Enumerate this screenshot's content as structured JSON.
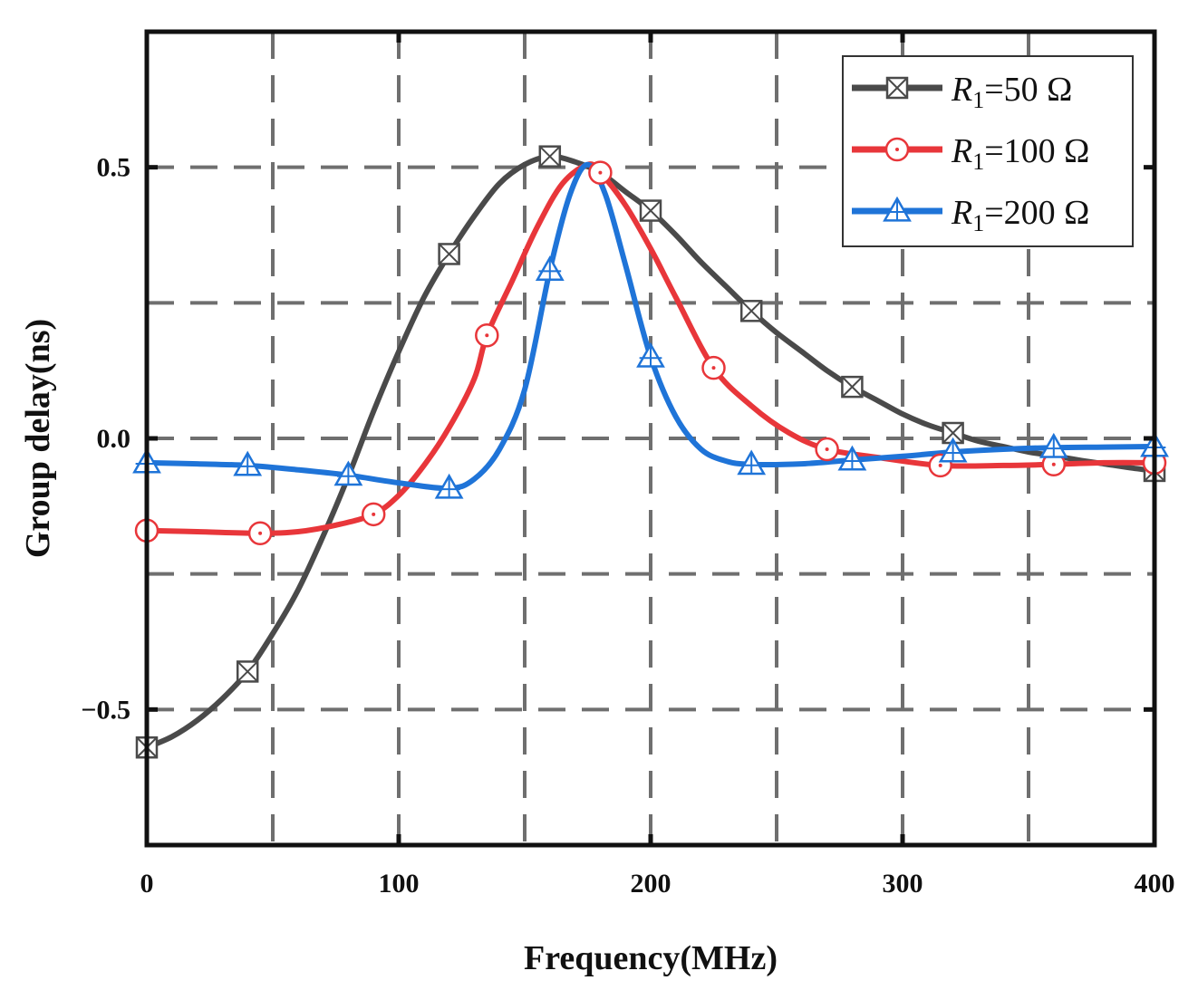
{
  "chart_data": {
    "type": "line",
    "title": "",
    "xlabel": "Frequency(MHz)",
    "ylabel": "Group delay(ns)",
    "xlim": [
      0,
      400
    ],
    "ylim": [
      -0.75,
      0.75
    ],
    "xticks": [
      0,
      100,
      200,
      300,
      400
    ],
    "xtick_labels": [
      "0",
      "100",
      "200",
      "300",
      "400"
    ],
    "yticks": [
      -0.5,
      0.0,
      0.5
    ],
    "ytick_labels": [
      "−0.5",
      "0.0",
      "0.5"
    ],
    "grid": "dashed",
    "legend_position": "top-right",
    "series": [
      {
        "name": "R1=50 Ω",
        "legend_var": "R",
        "legend_sub": "1",
        "legend_rest": "=50 Ω",
        "color": "#4a4a4a",
        "marker": "crossed-square",
        "curve": [
          [
            0,
            -0.57
          ],
          [
            10,
            -0.55
          ],
          [
            20,
            -0.52
          ],
          [
            30,
            -0.48
          ],
          [
            40,
            -0.43
          ],
          [
            50,
            -0.36
          ],
          [
            60,
            -0.28
          ],
          [
            70,
            -0.18
          ],
          [
            80,
            -0.07
          ],
          [
            90,
            0.05
          ],
          [
            100,
            0.16
          ],
          [
            110,
            0.26
          ],
          [
            120,
            0.34
          ],
          [
            130,
            0.41
          ],
          [
            140,
            0.47
          ],
          [
            150,
            0.505
          ],
          [
            160,
            0.52
          ],
          [
            170,
            0.51
          ],
          [
            180,
            0.49
          ],
          [
            190,
            0.455
          ],
          [
            200,
            0.42
          ],
          [
            210,
            0.375
          ],
          [
            220,
            0.325
          ],
          [
            230,
            0.28
          ],
          [
            240,
            0.235
          ],
          [
            250,
            0.195
          ],
          [
            260,
            0.16
          ],
          [
            270,
            0.125
          ],
          [
            280,
            0.095
          ],
          [
            290,
            0.07
          ],
          [
            300,
            0.045
          ],
          [
            310,
            0.025
          ],
          [
            320,
            0.01
          ],
          [
            330,
            -0.005
          ],
          [
            340,
            -0.015
          ],
          [
            350,
            -0.025
          ],
          [
            360,
            -0.032
          ],
          [
            370,
            -0.04
          ],
          [
            380,
            -0.047
          ],
          [
            390,
            -0.054
          ],
          [
            400,
            -0.06
          ]
        ],
        "markers": [
          [
            0,
            -0.57
          ],
          [
            40,
            -0.43
          ],
          [
            120,
            0.34
          ],
          [
            160,
            0.52
          ],
          [
            200,
            0.42
          ],
          [
            240,
            0.235
          ],
          [
            280,
            0.095
          ],
          [
            320,
            0.01
          ],
          [
            400,
            -0.06
          ]
        ]
      },
      {
        "name": "R1=100 Ω",
        "legend_var": "R",
        "legend_sub": "1",
        "legend_rest": "=100 Ω",
        "color": "#e8363a",
        "marker": "circle-dot",
        "curve": [
          [
            0,
            -0.17
          ],
          [
            20,
            -0.172
          ],
          [
            45,
            -0.175
          ],
          [
            60,
            -0.172
          ],
          [
            75,
            -0.16
          ],
          [
            90,
            -0.14
          ],
          [
            100,
            -0.105
          ],
          [
            110,
            -0.05
          ],
          [
            120,
            0.02
          ],
          [
            130,
            0.11
          ],
          [
            135,
            0.19
          ],
          [
            145,
            0.29
          ],
          [
            155,
            0.39
          ],
          [
            165,
            0.47
          ],
          [
            175,
            0.505
          ],
          [
            180,
            0.49
          ],
          [
            190,
            0.43
          ],
          [
            200,
            0.35
          ],
          [
            210,
            0.26
          ],
          [
            225,
            0.13
          ],
          [
            240,
            0.06
          ],
          [
            255,
            0.01
          ],
          [
            270,
            -0.02
          ],
          [
            290,
            -0.035
          ],
          [
            315,
            -0.05
          ],
          [
            340,
            -0.05
          ],
          [
            360,
            -0.048
          ],
          [
            380,
            -0.045
          ],
          [
            400,
            -0.045
          ]
        ],
        "markers": [
          [
            0,
            -0.17
          ],
          [
            45,
            -0.175
          ],
          [
            90,
            -0.14
          ],
          [
            135,
            0.19
          ],
          [
            180,
            0.49
          ],
          [
            225,
            0.13
          ],
          [
            270,
            -0.02
          ],
          [
            315,
            -0.05
          ],
          [
            360,
            -0.048
          ],
          [
            400,
            -0.045
          ]
        ]
      },
      {
        "name": "R1=200 Ω",
        "legend_var": "R",
        "legend_sub": "1",
        "legend_rest": "=200 Ω",
        "color": "#1f74d8",
        "marker": "triangle-cross",
        "curve": [
          [
            0,
            -0.045
          ],
          [
            20,
            -0.047
          ],
          [
            40,
            -0.05
          ],
          [
            60,
            -0.058
          ],
          [
            80,
            -0.068
          ],
          [
            100,
            -0.082
          ],
          [
            120,
            -0.092
          ],
          [
            130,
            -0.075
          ],
          [
            140,
            -0.02
          ],
          [
            150,
            0.09
          ],
          [
            160,
            0.31
          ],
          [
            168,
            0.45
          ],
          [
            175,
            0.505
          ],
          [
            182,
            0.45
          ],
          [
            190,
            0.32
          ],
          [
            200,
            0.15
          ],
          [
            210,
            0.04
          ],
          [
            220,
            -0.02
          ],
          [
            230,
            -0.042
          ],
          [
            240,
            -0.048
          ],
          [
            260,
            -0.047
          ],
          [
            280,
            -0.04
          ],
          [
            300,
            -0.033
          ],
          [
            320,
            -0.025
          ],
          [
            340,
            -0.02
          ],
          [
            360,
            -0.017
          ],
          [
            380,
            -0.016
          ],
          [
            400,
            -0.015
          ]
        ],
        "markers": [
          [
            0,
            -0.045
          ],
          [
            40,
            -0.05
          ],
          [
            80,
            -0.068
          ],
          [
            120,
            -0.092
          ],
          [
            160,
            0.31
          ],
          [
            200,
            0.15
          ],
          [
            240,
            -0.048
          ],
          [
            280,
            -0.04
          ],
          [
            320,
            -0.025
          ],
          [
            360,
            -0.017
          ],
          [
            400,
            -0.015
          ]
        ]
      }
    ]
  }
}
